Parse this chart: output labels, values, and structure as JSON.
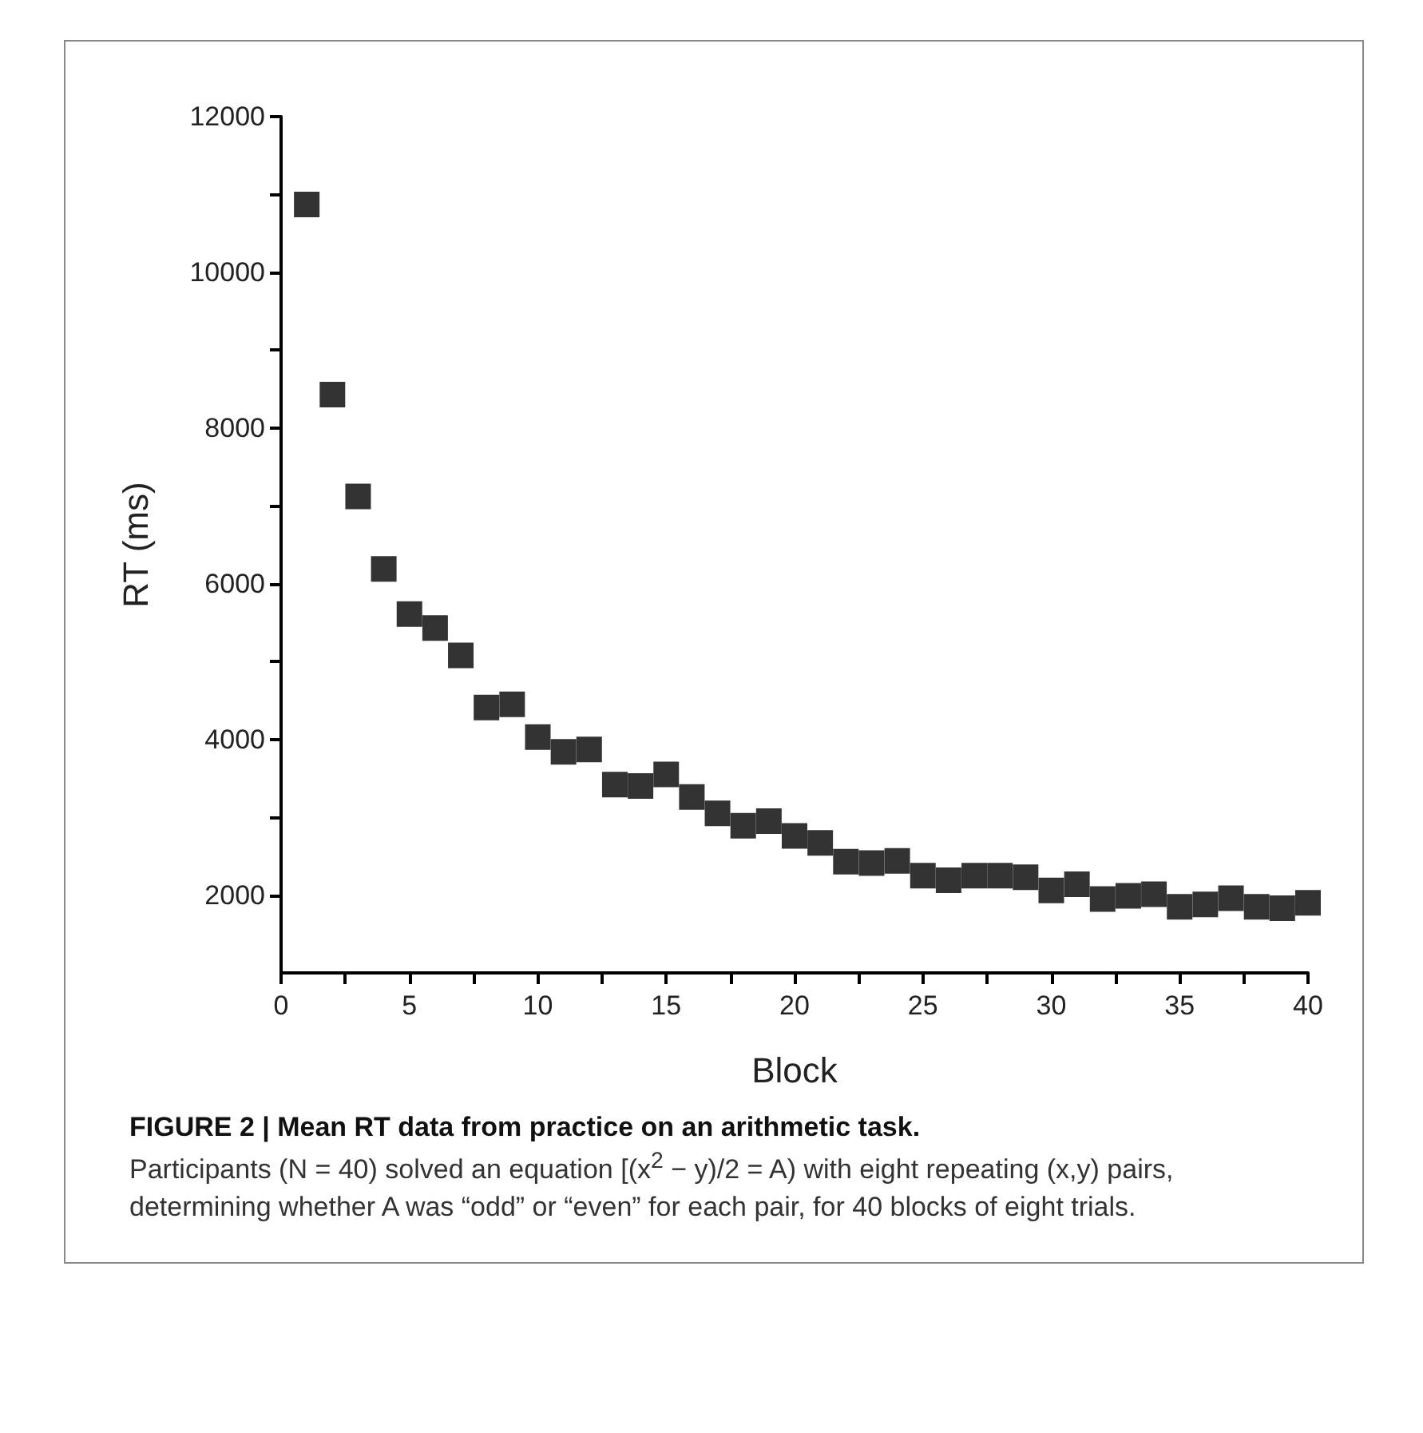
{
  "chart_data": {
    "type": "scatter",
    "title": "FIGURE 2 | Mean RT data from practice on an arithmetic task.",
    "annotations": [
      "Participants (N = 40) solved an equation [(x$^{2}$ − y)/2 = A) with eight repeating (x,y) pairs, determining whether A was “odd” or “even” for each pair, for 40 blocks of eight trials."
    ],
    "xlabel": "Block",
    "ylabel": "RT (ms)",
    "x": [
      1,
      2,
      3,
      4,
      5,
      6,
      7,
      8,
      9,
      10,
      11,
      12,
      13,
      14,
      15,
      16,
      17,
      18,
      19,
      20,
      21,
      22,
      23,
      24,
      25,
      26,
      27,
      28,
      29,
      30,
      31,
      32,
      33,
      34,
      35,
      36,
      37,
      38,
      39,
      40
    ],
    "series": [
      {
        "color": "#000000",
        "values": [
          10870,
          8430,
          7120,
          6190,
          5610,
          5430,
          5080,
          4410,
          4450,
          4030,
          3840,
          3870,
          3420,
          3400,
          3550,
          3260,
          3050,
          2890,
          2950,
          2760,
          2670,
          2430,
          2410,
          2440,
          2250,
          2190,
          2250,
          2250,
          2230,
          2060,
          2140,
          1950,
          1990,
          2010,
          1850,
          1880,
          1960,
          1850,
          1830,
          1900
        ]
      }
    ],
    "marker": "square",
    "xlim": [
      0,
      40
    ],
    "xticks": [
      0,
      {
        "value": 2.5,
        "label": null
      },
      5,
      {
        "value": 7.5,
        "label": null
      },
      10,
      {
        "value": 12.5,
        "label": null
      },
      15,
      {
        "value": 17.5,
        "label": null
      },
      20,
      {
        "value": 22.5,
        "label": null
      },
      25,
      {
        "value": 27.5,
        "label": null
      },
      30,
      {
        "value": 32.5,
        "label": null
      },
      35,
      {
        "value": 37.5,
        "label": null
      },
      40
    ],
    "ylim": [
      1000,
      12000
    ],
    "yticks": [
      2000,
      {
        "value": 3000,
        "label": null
      },
      4000,
      {
        "value": 5000,
        "label": null
      },
      6000,
      {
        "value": 7000,
        "label": null
      },
      8000,
      {
        "value": 9000,
        "label": null
      },
      10000,
      {
        "value": 11000,
        "label": null
      },
      12000
    ]
  }
}
